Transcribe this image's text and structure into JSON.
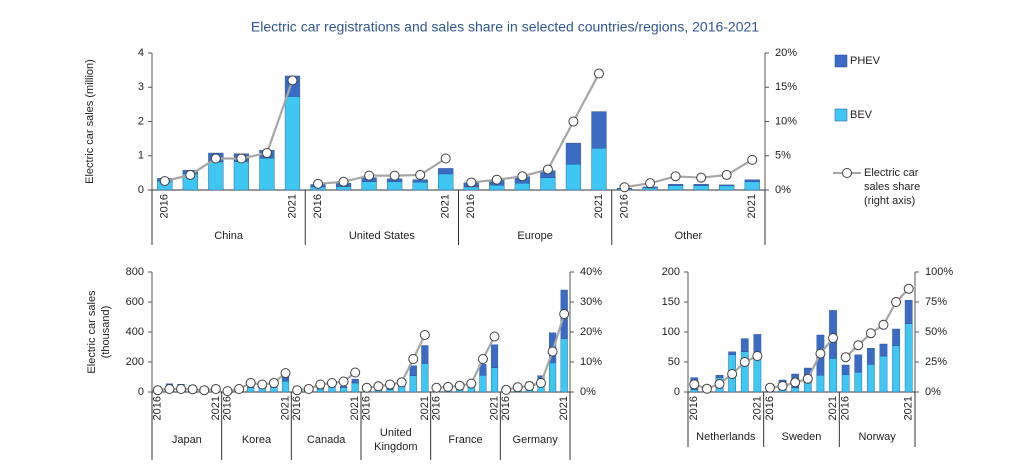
{
  "chart_data": [
    {
      "type": "bar",
      "title": "Electric car registrations and sales share in selected countries/regions, 2016-2021",
      "ylabel": "Electric car sales (million)",
      "groups": [
        "China",
        "United States",
        "Europe",
        "Other"
      ],
      "categories": [
        "2016",
        null,
        null,
        null,
        null,
        "2021",
        "2016",
        null,
        null,
        null,
        null,
        "2021",
        "2016",
        null,
        null,
        null,
        null,
        "2021",
        "2016",
        null,
        null,
        null,
        null,
        "2021"
      ],
      "ylim": [
        0,
        4
      ],
      "yticks": [
        0,
        1,
        2,
        3,
        4
      ],
      "y2lim": [
        0,
        20
      ],
      "y2ticks": [
        {
          "value": 0,
          "label": "0%"
        },
        {
          "value": 5,
          "label": "5%"
        },
        {
          "value": 10,
          "label": "10%"
        },
        {
          "value": 15,
          "label": "15%"
        },
        {
          "value": 20,
          "label": "20%"
        }
      ],
      "legend": "right",
      "series": [
        {
          "name": "BEV",
          "color": "#3fc7f4",
          "values": [
            0.26,
            0.47,
            0.82,
            0.83,
            0.93,
            2.73,
            0.09,
            0.1,
            0.24,
            0.24,
            0.23,
            0.47,
            0.09,
            0.14,
            0.2,
            0.36,
            0.75,
            1.22,
            0.03,
            0.06,
            0.13,
            0.13,
            0.12,
            0.24
          ]
        },
        {
          "name": "PHEV",
          "color": "#3a6cc6",
          "values": [
            0.08,
            0.11,
            0.26,
            0.23,
            0.23,
            0.6,
            0.07,
            0.1,
            0.12,
            0.09,
            0.07,
            0.16,
            0.12,
            0.16,
            0.19,
            0.2,
            0.62,
            1.07,
            0.02,
            0.03,
            0.04,
            0.04,
            0.03,
            0.06
          ]
        },
        {
          "name": "Electric car sales share (right axis)",
          "color": "#a6a6a6",
          "axis": "y2",
          "values": [
            1.3,
            2.2,
            4.6,
            4.6,
            5.4,
            16,
            0.9,
            1.2,
            2.1,
            2.1,
            2.2,
            4.6,
            1.1,
            1.5,
            2.0,
            3.0,
            10,
            17,
            0.4,
            1,
            2,
            1.8,
            2.2,
            4.4
          ]
        }
      ]
    },
    {
      "type": "bar",
      "ylabel": "Electric car sales (thousand)",
      "groups": [
        "Japan",
        "Korea",
        "Canada",
        "United Kingdom",
        "France",
        "Germany"
      ],
      "categories": [
        "2016",
        null,
        null,
        null,
        null,
        "2021",
        "2016",
        null,
        null,
        null,
        null,
        "2021",
        "2016",
        null,
        null,
        null,
        null,
        "2021",
        "2016",
        null,
        null,
        null,
        null,
        "2021",
        "2016",
        null,
        null,
        null,
        null,
        "2021",
        "2016",
        null,
        null,
        null,
        null,
        "2021"
      ],
      "ylim": [
        0,
        800
      ],
      "yticks": [
        0,
        200,
        400,
        600,
        800
      ],
      "y2lim": [
        0,
        40
      ],
      "y2ticks": [
        {
          "value": 0,
          "label": "0%"
        },
        {
          "value": 10,
          "label": "10%"
        },
        {
          "value": 20,
          "label": "20%"
        },
        {
          "value": 30,
          "label": "30%"
        },
        {
          "value": 40,
          "label": "40%"
        }
      ],
      "series": [
        {
          "color": "#3fc7f4",
          "values": [
            15,
            18,
            26,
            21,
            15,
            21,
            5,
            13,
            29,
            32,
            31,
            72,
            5,
            9,
            19,
            33,
            30,
            60,
            10,
            14,
            16,
            38,
            108,
            190,
            22,
            25,
            31,
            43,
            111,
            162,
            11,
            25,
            36,
            63,
            194,
            356
          ]
        },
        {
          "color": "#3a6cc6",
          "values": [
            10,
            37,
            26,
            23,
            14,
            23,
            0,
            1,
            3,
            3,
            15,
            28,
            6,
            9,
            25,
            18,
            9,
            26,
            28,
            34,
            44,
            36,
            67,
            120,
            7,
            12,
            15,
            27,
            74,
            153,
            14,
            30,
            31,
            46,
            201,
            324
          ]
        },
        {
          "color": "#a6a6a6",
          "axis": "y2",
          "values": [
            0.6,
            1.0,
            1.0,
            0.9,
            0.6,
            1.0,
            0.3,
            1,
            3,
            2.5,
            3,
            6.3,
            0.6,
            1,
            2.5,
            3,
            3.5,
            6.5,
            1.4,
            1.9,
            2.5,
            3.2,
            11,
            19,
            1.4,
            1.7,
            2.1,
            2.8,
            11,
            18.5,
            0.7,
            1.6,
            2,
            3,
            13.5,
            26
          ]
        }
      ]
    },
    {
      "type": "bar",
      "groups": [
        "Netherlands",
        "Sweden",
        "Norway"
      ],
      "categories": [
        "2016",
        null,
        null,
        null,
        null,
        "2021",
        "2016",
        null,
        null,
        null,
        null,
        "2021",
        "2016",
        null,
        null,
        null,
        null,
        "2021"
      ],
      "ylim": [
        0,
        200
      ],
      "yticks": [
        0,
        50,
        100,
        150,
        200
      ],
      "y2lim": [
        0,
        100
      ],
      "y2ticks": [
        {
          "value": 0,
          "label": "0%"
        },
        {
          "value": 25,
          "label": "25%"
        },
        {
          "value": 50,
          "label": "50%"
        },
        {
          "value": 75,
          "label": "75%"
        },
        {
          "value": 100,
          "label": "100%"
        }
      ],
      "series": [
        {
          "color": "#3fc7f4",
          "values": [
            4,
            9,
            24,
            62,
            67,
            59,
            3,
            4,
            7,
            16,
            28,
            56,
            29,
            33,
            46,
            60,
            77,
            114
          ]
        },
        {
          "color": "#3a6cc6",
          "values": [
            20,
            2,
            4,
            5,
            22,
            37,
            10,
            16,
            23,
            24,
            67,
            80,
            16,
            29,
            27,
            20,
            28,
            39
          ]
        },
        {
          "color": "#a6a6a6",
          "axis": "y2",
          "values": [
            6.4,
            2.7,
            6.7,
            15,
            25,
            30,
            3.5,
            5,
            8,
            11,
            32,
            45,
            29,
            39,
            49,
            56,
            75,
            86
          ]
        }
      ]
    }
  ]
}
